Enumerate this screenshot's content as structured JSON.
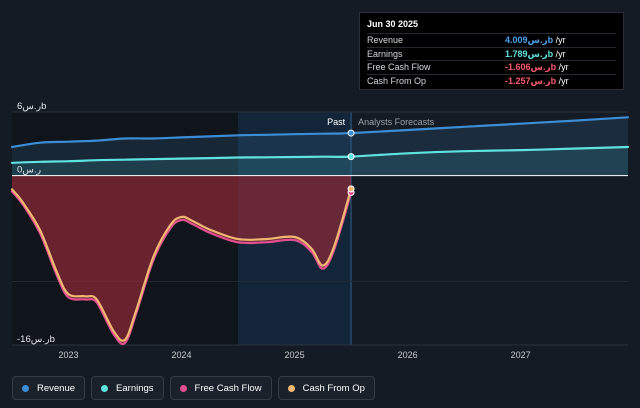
{
  "tooltip": {
    "date": "Jun 30 2025",
    "rows": [
      {
        "label": "Revenue",
        "value": "4.009ر.سb",
        "unit": " /yr",
        "color": "#4aa3f0"
      },
      {
        "label": "Earnings",
        "value": "1.789ر.سb",
        "unit": " /yr",
        "color": "#5fe3e0"
      },
      {
        "label": "Free Cash Flow",
        "value": "-1.606ر.سb",
        "unit": " /yr",
        "color": "#ff5a6e"
      },
      {
        "label": "Cash From Op",
        "value": "-1.257ر.سb",
        "unit": " /yr",
        "color": "#ff5a6e"
      }
    ]
  },
  "labels": {
    "past": "Past",
    "forecast": "Analysts Forecasts"
  },
  "legend": [
    {
      "label": "Revenue",
      "color": "#3b8ed6"
    },
    {
      "label": "Earnings",
      "color": "#5fe3e0"
    },
    {
      "label": "Free Cash Flow",
      "color": "#e0508f"
    },
    {
      "label": "Cash From Op",
      "color": "#f2b872"
    }
  ],
  "chart_data": {
    "type": "line",
    "xlim": [
      2022.5,
      2027.95
    ],
    "ylim": [
      -16,
      6
    ],
    "y_tick_labels": [
      {
        "value": 6,
        "text": "6ر.سb"
      },
      {
        "value": 0,
        "text": "0ر.س"
      },
      {
        "value": -16,
        "text": "-16ر.سb"
      }
    ],
    "x_tick_labels": [
      {
        "value": 2023,
        "text": "2023"
      },
      {
        "value": 2024,
        "text": "2024"
      },
      {
        "value": 2025,
        "text": "2025"
      },
      {
        "value": 2026,
        "text": "2026"
      },
      {
        "value": 2027,
        "text": "2027"
      }
    ],
    "past_end": 2025.5,
    "highlight_start": 2024.5,
    "series": [
      {
        "name": "Revenue",
        "color": "#3b8ed6",
        "x": [
          2022.5,
          2022.75,
          2023.0,
          2023.25,
          2023.5,
          2023.75,
          2024.0,
          2024.25,
          2024.5,
          2024.75,
          2025.0,
          2025.25,
          2025.5,
          2026.0,
          2026.5,
          2027.0,
          2027.5,
          2027.95
        ],
        "y": [
          2.7,
          3.1,
          3.2,
          3.3,
          3.5,
          3.5,
          3.6,
          3.7,
          3.8,
          3.85,
          3.9,
          3.95,
          4.009,
          4.3,
          4.6,
          4.9,
          5.2,
          5.5
        ]
      },
      {
        "name": "Earnings",
        "color": "#5fe3e0",
        "x": [
          2022.5,
          2022.75,
          2023.0,
          2023.25,
          2023.5,
          2023.75,
          2024.0,
          2024.25,
          2024.5,
          2024.75,
          2025.0,
          2025.25,
          2025.5,
          2026.0,
          2026.5,
          2027.0,
          2027.5,
          2027.95
        ],
        "y": [
          1.2,
          1.3,
          1.35,
          1.45,
          1.5,
          1.55,
          1.6,
          1.65,
          1.7,
          1.72,
          1.75,
          1.78,
          1.789,
          2.1,
          2.3,
          2.4,
          2.55,
          2.7
        ]
      },
      {
        "name": "Free Cash Flow",
        "color": "#e0508f",
        "x": [
          2022.5,
          2022.6,
          2022.75,
          2022.9,
          2023.0,
          2023.15,
          2023.25,
          2023.4,
          2023.5,
          2023.6,
          2023.75,
          2023.9,
          2024.0,
          2024.1,
          2024.25,
          2024.5,
          2024.75,
          2025.0,
          2025.15,
          2025.25,
          2025.35,
          2025.5
        ],
        "y": [
          -1.5,
          -2.8,
          -5.5,
          -9.5,
          -11.5,
          -11.7,
          -12.0,
          -15.0,
          -15.8,
          -13.0,
          -8.0,
          -5.0,
          -4.2,
          -4.6,
          -5.4,
          -6.3,
          -6.3,
          -6.1,
          -7.2,
          -8.8,
          -7.0,
          -1.606
        ]
      },
      {
        "name": "Cash From Op",
        "color": "#f2b872",
        "x": [
          2022.5,
          2022.6,
          2022.75,
          2022.9,
          2023.0,
          2023.15,
          2023.25,
          2023.4,
          2023.5,
          2023.6,
          2023.75,
          2023.9,
          2024.0,
          2024.1,
          2024.25,
          2024.5,
          2024.75,
          2025.0,
          2025.15,
          2025.25,
          2025.35,
          2025.5
        ],
        "y": [
          -1.3,
          -2.6,
          -5.2,
          -9.2,
          -11.2,
          -11.4,
          -11.7,
          -14.7,
          -15.5,
          -12.7,
          -7.7,
          -4.7,
          -3.9,
          -4.3,
          -5.1,
          -6.0,
          -6.0,
          -5.8,
          -6.9,
          -8.5,
          -6.7,
          -1.257
        ]
      }
    ]
  }
}
